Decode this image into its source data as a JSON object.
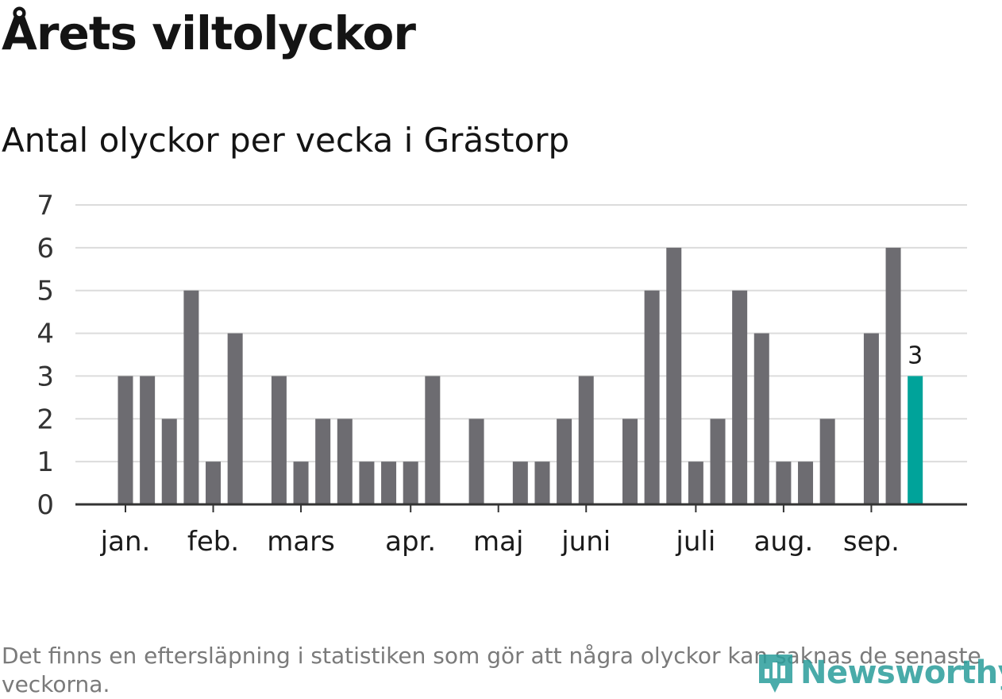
{
  "header": {
    "title": "Årets viltolyckor",
    "subtitle": "Antal olyckor per vecka i Grästorp"
  },
  "chart_data": {
    "type": "bar",
    "title": "Årets viltolyckor",
    "subtitle": "Antal olyckor per vecka i Grästorp",
    "ylim": [
      0,
      7
    ],
    "yticks": [
      0,
      1,
      2,
      3,
      4,
      5,
      6,
      7
    ],
    "grid": true,
    "month_labels": [
      "jan.",
      "feb.",
      "mars",
      "apr.",
      "maj",
      "juni",
      "juli",
      "aug.",
      "sep."
    ],
    "month_tick_weeks": [
      1,
      5,
      9,
      14,
      18,
      22,
      27,
      31,
      35
    ],
    "weeks": [
      1,
      2,
      3,
      4,
      5,
      6,
      7,
      8,
      9,
      10,
      11,
      12,
      13,
      14,
      15,
      16,
      17,
      18,
      19,
      20,
      21,
      22,
      23,
      24,
      25,
      26,
      27,
      28,
      29,
      30,
      31,
      32,
      33,
      34,
      35,
      36,
      37
    ],
    "values": [
      3,
      3,
      2,
      5,
      1,
      4,
      0,
      3,
      1,
      2,
      2,
      1,
      1,
      1,
      3,
      0,
      2,
      0,
      1,
      1,
      2,
      3,
      0,
      2,
      5,
      6,
      1,
      2,
      5,
      4,
      1,
      1,
      2,
      0,
      4,
      6,
      3
    ],
    "highlight_index": 36,
    "highlight_label": "3",
    "colors": {
      "bar": "#6d6c71",
      "highlight": "#00a39a",
      "grid": "#dcdcdc",
      "axis": "#333333"
    }
  },
  "footer": {
    "note": "Det finns en eftersläpning i statistiken som gör att några olyckor kan saknas de senaste veckorna.",
    "logo_text": "Newsworthy",
    "logo_icon": "newsworthy-logo-icon"
  }
}
